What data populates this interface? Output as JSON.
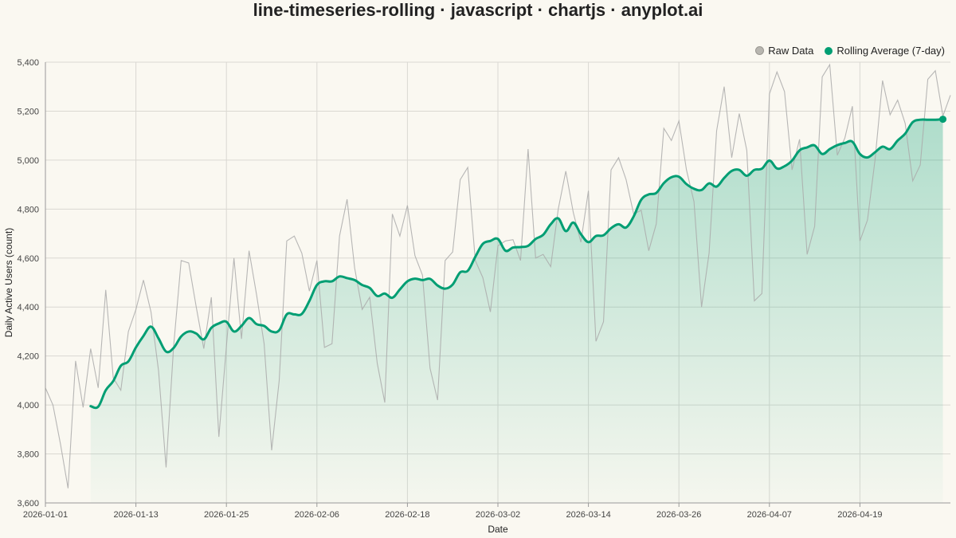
{
  "title": "line-timeseries-rolling · javascript · chartjs · anyplot.ai",
  "legend": {
    "raw_label": "Raw Data",
    "rolling_label": "Rolling Average (7-day)"
  },
  "colors": {
    "raw": "#aaaaaa",
    "rolling": "#009E73",
    "background": "#FAF8F1",
    "grid": "#d8d6d0"
  },
  "chart_data": {
    "type": "line",
    "title": "line-timeseries-rolling · javascript · chartjs · anyplot.ai",
    "xlabel": "Date",
    "ylabel": "Daily Active Users (count)",
    "start_date": "2026-01-01",
    "x_tick_labels": [
      "2026-01-01",
      "2026-01-13",
      "2026-01-25",
      "2026-02-06",
      "2026-02-18",
      "2026-03-02",
      "2026-03-14",
      "2026-03-26",
      "2026-04-07",
      "2026-04-19"
    ],
    "y_tick_labels": [
      "3,600",
      "3,800",
      "4,000",
      "4,200",
      "4,400",
      "4,600",
      "4,800",
      "5,000",
      "5,200",
      "5,400"
    ],
    "ylim": [
      3600,
      5400
    ],
    "grid": true,
    "legend_position": "top-right",
    "series": [
      {
        "name": "Raw Data",
        "values": [
          4070,
          4000,
          3840,
          3660,
          4180,
          3990,
          4230,
          4070,
          4470,
          4110,
          4060,
          4300,
          4390,
          4510,
          4380,
          4140,
          3745,
          4240,
          4590,
          4580,
          4400,
          4230,
          4440,
          3870,
          4240,
          4600,
          4270,
          4630,
          4450,
          4250,
          3815,
          4100,
          4670,
          4690,
          4620,
          4465,
          4590,
          4235,
          4250,
          4690,
          4840,
          4560,
          4390,
          4440,
          4170,
          4010,
          4780,
          4690,
          4815,
          4610,
          4530,
          4150,
          4020,
          4590,
          4625,
          4920,
          4970,
          4590,
          4520,
          4380,
          4650,
          4670,
          4675,
          4590,
          5045,
          4600,
          4615,
          4565,
          4800,
          4955,
          4785,
          4665,
          4875,
          4260,
          4340,
          4960,
          5010,
          4920,
          4780,
          4795,
          4630,
          4740,
          5130,
          5080,
          5160,
          4960,
          4830,
          4400,
          4620,
          5120,
          5300,
          5010,
          5190,
          5040,
          4425,
          4455,
          5270,
          5360,
          5280,
          4960,
          5085,
          4615,
          4730,
          5340,
          5390,
          5020,
          5090,
          5220,
          4670,
          4755,
          5000,
          5325,
          5185,
          5245,
          5150,
          4915,
          4980,
          5330,
          5365,
          5180,
          5265
        ]
      },
      {
        "name": "Rolling Average (7-day)",
        "start_index": 6,
        "values": [
          3995,
          3993,
          4060,
          4098,
          4160,
          4178,
          4235,
          4282,
          4320,
          4272,
          4218,
          4233,
          4280,
          4300,
          4292,
          4268,
          4315,
          4333,
          4340,
          4300,
          4323,
          4355,
          4330,
          4323,
          4300,
          4305,
          4370,
          4370,
          4372,
          4425,
          4490,
          4505,
          4505,
          4525,
          4518,
          4510,
          4490,
          4478,
          4445,
          4455,
          4438,
          4472,
          4505,
          4516,
          4510,
          4515,
          4488,
          4475,
          4492,
          4542,
          4548,
          4605,
          4658,
          4670,
          4678,
          4630,
          4643,
          4645,
          4650,
          4678,
          4695,
          4738,
          4762,
          4710,
          4745,
          4698,
          4665,
          4690,
          4693,
          4722,
          4738,
          4725,
          4770,
          4838,
          4860,
          4866,
          4906,
          4930,
          4932,
          4902,
          4883,
          4878,
          4905,
          4892,
          4927,
          4956,
          4960,
          4936,
          4960,
          4965,
          4998,
          4966,
          4975,
          4998,
          5040,
          5052,
          5060,
          5025,
          5045,
          5061,
          5070,
          5075,
          5025,
          5011,
          5032,
          5055,
          5045,
          5080,
          5108,
          5155,
          5165,
          5165,
          5165,
          5167
        ]
      }
    ]
  }
}
